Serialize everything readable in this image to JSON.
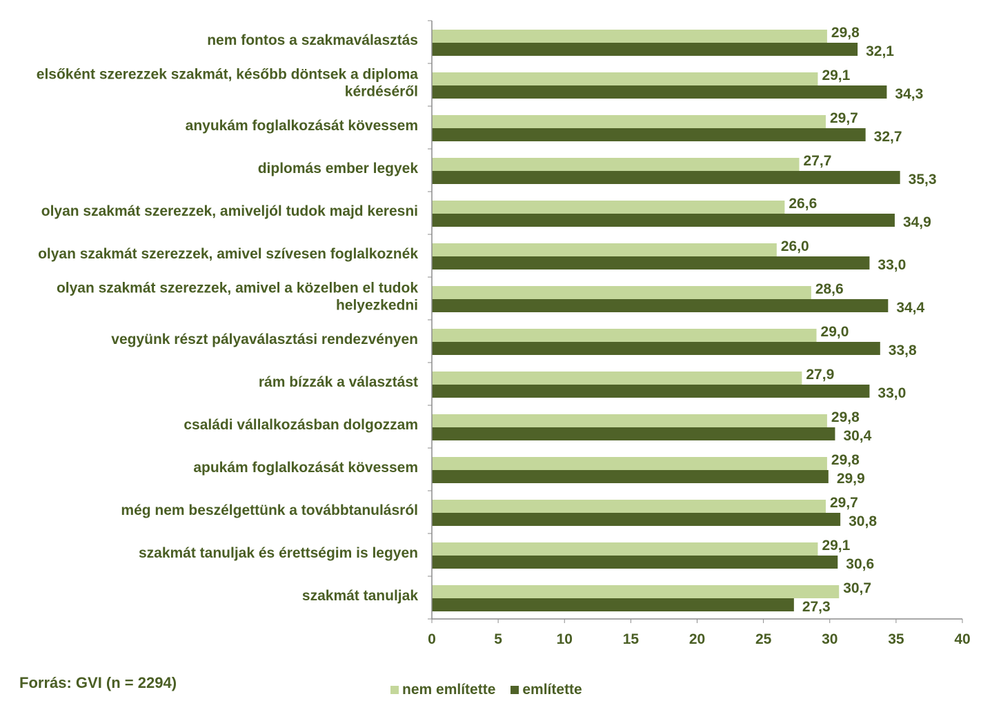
{
  "chart_data": {
    "type": "bar",
    "orientation": "horizontal",
    "categories": [
      [
        "nem fontos a szakmaválasztás"
      ],
      [
        "elsőként szerezzek szakmát, később döntsek a diploma",
        "kérdéséről"
      ],
      [
        "anyukám foglalkozását kövessem"
      ],
      [
        "diplomás ember legyek"
      ],
      [
        "olyan szakmát szerezzek, amiveljól tudok majd keresni"
      ],
      [
        "olyan szakmát szerezzek, amivel szívesen foglalkoznék"
      ],
      [
        "olyan szakmát szerezzek, amivel a közelben el tudok",
        "helyezkedni"
      ],
      [
        "vegyünk részt pályaválasztási rendezvényen"
      ],
      [
        "rám bízzák a választást"
      ],
      [
        "családi vállalkozásban dolgozzam"
      ],
      [
        "apukám foglalkozását kövessem"
      ],
      [
        "még nem beszélgettünk a továbbtanulásról"
      ],
      [
        "szakmát tanuljak és érettségim is legyen"
      ],
      [
        "szakmát tanuljak"
      ]
    ],
    "series": [
      {
        "name": "nem említette",
        "color": "#c4d79b",
        "values": [
          29.8,
          29.1,
          29.7,
          27.7,
          26.6,
          26.0,
          28.6,
          29.0,
          27.9,
          29.8,
          29.8,
          29.7,
          29.1,
          30.7
        ],
        "labels": [
          "29,8",
          "29,1",
          "29,7",
          "27,7",
          "26,6",
          "26,0",
          "28,6",
          "29,0",
          "27,9",
          "29,8",
          "29,8",
          "29,7",
          "29,1",
          "30,7"
        ]
      },
      {
        "name": "említette",
        "color": "#4f6228",
        "values": [
          32.1,
          34.3,
          32.7,
          35.3,
          34.9,
          33.0,
          34.4,
          33.8,
          33.0,
          30.4,
          29.9,
          30.8,
          30.6,
          27.3
        ],
        "labels": [
          "32,1",
          "34,3",
          "32,7",
          "35,3",
          "34,9",
          "33,0",
          "34,4",
          "33,8",
          "33,0",
          "30,4",
          "29,9",
          "30,8",
          "30,6",
          "27,3"
        ]
      }
    ],
    "xlim": [
      0,
      40
    ],
    "xticks": [
      "0",
      "5",
      "10",
      "15",
      "20",
      "25",
      "30",
      "35",
      "40"
    ],
    "xlabel": "",
    "ylabel": "",
    "title": "",
    "legend_position": "bottom",
    "grid": false
  },
  "source_text": "Forrás: GVI (n = 2294)"
}
